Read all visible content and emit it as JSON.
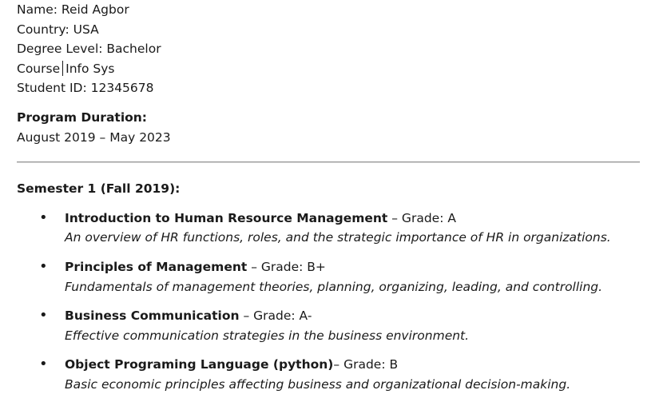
{
  "student": {
    "name": "Name: Reid Agbor",
    "country": "Country: USA",
    "degree_level": "Degree Level: Bachelor",
    "course_label": "Course",
    "course_value": "Info Sys",
    "student_id": "Student ID: 12345678"
  },
  "program": {
    "duration_label": "Program Duration:",
    "duration_value": "August 2019 – May 2023"
  },
  "semester": {
    "title": "Semester 1 (Fall 2019):",
    "courses": [
      {
        "bullet": "•",
        "name": "Introduction to Human Resource Management",
        "grade": " – Grade: A",
        "description": "An overview of HR functions, roles, and the strategic importance of HR in organizations."
      },
      {
        "bullet": "•",
        "name": "Principles of Management",
        "grade": " – Grade: B+",
        "description": "Fundamentals of management theories, planning, organizing, leading, and controlling."
      },
      {
        "bullet": "•",
        "name": "Business Communication",
        "grade": " – Grade: A-",
        "description": "Effective communication strategies in the business environment."
      },
      {
        "bullet": "•",
        "name": "Object Programing Language (python)",
        "grade": "– Grade: B",
        "description": "Basic economic principles affecting business and organizational decision-making."
      }
    ]
  }
}
